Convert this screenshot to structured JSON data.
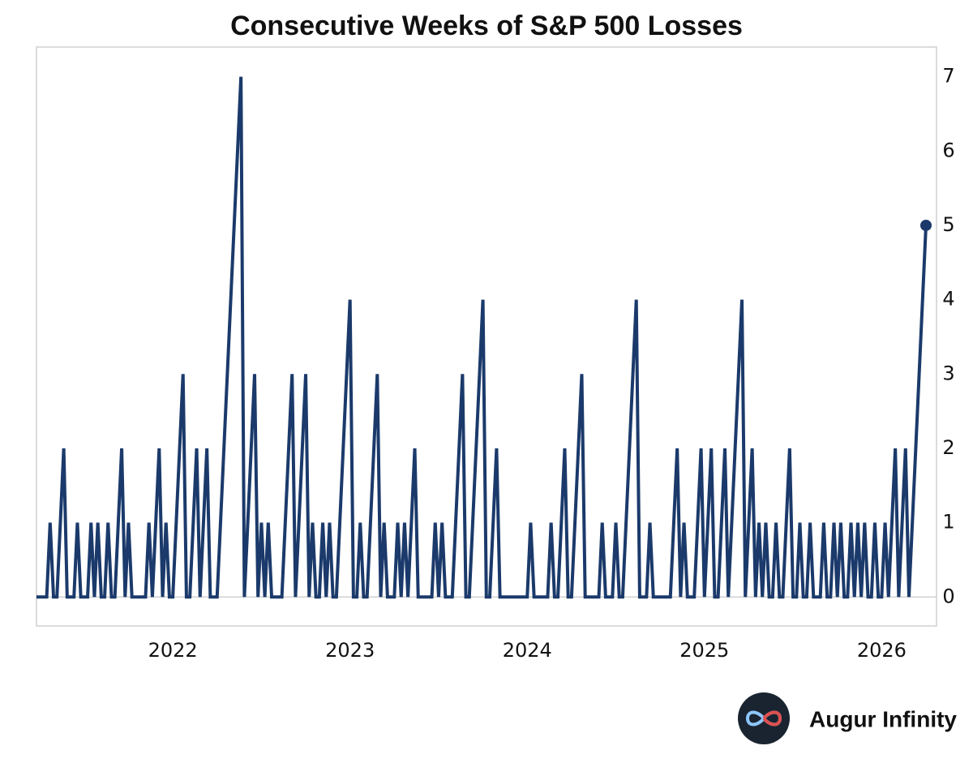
{
  "chart_data": {
    "type": "line",
    "title": "Consecutive Weeks of S&P 500 Losses",
    "branding": "Augur Infinity",
    "categories": [
      null,
      null,
      null,
      null,
      null,
      null,
      null,
      null,
      null,
      null,
      null,
      null,
      null,
      null,
      null,
      null,
      null,
      null,
      null,
      null,
      null,
      null,
      null,
      null,
      null,
      null,
      null,
      null,
      null,
      null,
      null,
      null,
      null,
      null,
      null,
      null,
      null,
      null,
      null,
      null,
      "2022",
      null,
      null,
      null,
      null,
      null,
      null,
      null,
      null,
      null,
      null,
      null,
      null,
      null,
      null,
      null,
      null,
      null,
      null,
      null,
      null,
      null,
      null,
      null,
      null,
      null,
      null,
      null,
      null,
      null,
      null,
      null,
      null,
      null,
      null,
      null,
      null,
      null,
      null,
      null,
      null,
      null,
      null,
      null,
      null,
      null,
      null,
      null,
      null,
      null,
      null,
      null,
      "2023",
      null,
      null,
      null,
      null,
      null,
      null,
      null,
      null,
      null,
      null,
      null,
      null,
      null,
      null,
      null,
      null,
      null,
      null,
      null,
      null,
      null,
      null,
      null,
      null,
      null,
      null,
      null,
      null,
      null,
      null,
      null,
      null,
      null,
      null,
      null,
      null,
      null,
      null,
      null,
      null,
      null,
      null,
      null,
      null,
      null,
      null,
      null,
      null,
      null,
      null,
      null,
      "2024",
      null,
      null,
      null,
      null,
      null,
      null,
      null,
      null,
      null,
      null,
      null,
      null,
      null,
      null,
      null,
      null,
      null,
      null,
      null,
      null,
      null,
      null,
      null,
      null,
      null,
      null,
      null,
      null,
      null,
      null,
      null,
      null,
      null,
      null,
      null,
      null,
      null,
      null,
      null,
      null,
      null,
      null,
      null,
      null,
      null,
      null,
      null,
      null,
      null,
      null,
      null,
      "2025",
      null,
      null,
      null,
      null,
      null,
      null,
      null,
      null,
      null,
      null,
      null,
      null,
      null,
      null,
      null,
      null,
      null,
      null,
      null,
      null,
      null,
      null,
      null,
      null,
      null,
      null,
      null,
      null,
      null,
      null,
      null,
      null,
      null,
      null,
      null,
      null,
      null,
      null,
      null,
      null,
      null,
      null,
      null,
      null,
      null,
      null,
      null,
      null,
      null,
      null,
      null,
      "2026",
      null,
      null,
      null,
      null,
      null,
      null,
      null,
      null,
      null,
      null,
      null,
      null,
      null
    ],
    "series": [
      {
        "color": "#1b3a6b",
        "values": [
          0,
          0,
          0,
          0,
          1,
          0,
          0,
          1,
          2,
          0,
          0,
          0,
          1,
          0,
          0,
          0,
          1,
          0,
          1,
          0,
          0,
          1,
          0,
          0,
          1,
          2,
          0,
          1,
          0,
          0,
          0,
          0,
          0,
          1,
          0,
          1,
          2,
          0,
          1,
          0,
          0,
          1,
          2,
          3,
          0,
          0,
          1,
          2,
          0,
          1,
          2,
          0,
          0,
          0,
          1,
          2,
          3,
          4,
          5,
          6,
          7,
          0,
          1,
          2,
          3,
          0,
          1,
          0,
          1,
          0,
          0,
          0,
          0,
          1,
          2,
          3,
          0,
          1,
          2,
          3,
          0,
          1,
          0,
          0,
          1,
          0,
          1,
          0,
          0,
          1,
          2,
          3,
          4,
          0,
          0,
          1,
          0,
          0,
          1,
          2,
          3,
          0,
          1,
          0,
          0,
          0,
          1,
          0,
          1,
          0,
          1,
          2,
          0,
          0,
          0,
          0,
          0,
          1,
          0,
          1,
          0,
          0,
          0,
          1,
          2,
          3,
          0,
          0,
          1,
          2,
          3,
          4,
          0,
          0,
          1,
          2,
          0,
          0,
          0,
          0,
          0,
          0,
          0,
          0,
          0,
          1,
          0,
          0,
          0,
          0,
          0,
          1,
          0,
          0,
          1,
          2,
          0,
          0,
          1,
          2,
          3,
          0,
          0,
          0,
          0,
          0,
          1,
          0,
          0,
          0,
          1,
          0,
          0,
          1,
          2,
          3,
          4,
          0,
          0,
          0,
          1,
          0,
          0,
          0,
          0,
          0,
          0,
          1,
          2,
          0,
          1,
          0,
          0,
          0,
          1,
          2,
          0,
          1,
          2,
          0,
          0,
          1,
          2,
          0,
          1,
          2,
          3,
          4,
          0,
          1,
          2,
          0,
          1,
          0,
          1,
          0,
          0,
          1,
          0,
          0,
          1,
          2,
          0,
          0,
          1,
          0,
          0,
          1,
          0,
          0,
          0,
          1,
          0,
          0,
          1,
          0,
          1,
          0,
          0,
          1,
          0,
          1,
          0,
          1,
          0,
          0,
          1,
          0,
          0,
          1,
          0,
          1,
          2,
          0,
          1,
          2,
          0,
          1,
          2,
          3,
          4,
          5
        ]
      }
    ],
    "ylim": [
      -0.39,
      7.4
    ],
    "yticks": [
      0,
      1,
      2,
      3,
      4,
      5,
      6,
      7
    ],
    "last_point_marker": true
  }
}
